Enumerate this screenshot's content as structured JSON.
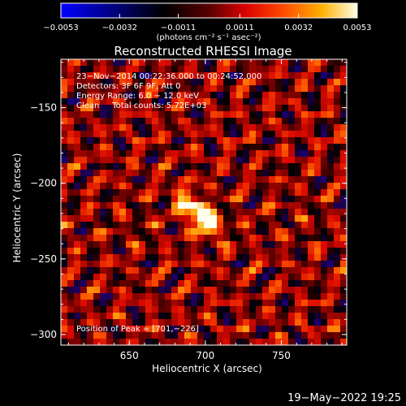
{
  "chart_data": {
    "type": "heatmap",
    "title": "Reconstructed RHESSI Image",
    "xlabel": "Heliocentric X (arcsec)",
    "ylabel": "Heliocentric Y (arcsec)",
    "xlim": [
      605,
      793
    ],
    "ylim": [
      -307,
      -118
    ],
    "x_ticks": [
      {
        "value": 650,
        "label": "650"
      },
      {
        "value": 700,
        "label": "700"
      },
      {
        "value": 750,
        "label": "750"
      }
    ],
    "y_ticks": [
      {
        "value": -150,
        "label": "−150"
      },
      {
        "value": -200,
        "label": "−200"
      },
      {
        "value": -250,
        "label": "−250"
      },
      {
        "value": -300,
        "label": "−300"
      }
    ],
    "colorbar": {
      "min": -0.0053,
      "max": 0.0053,
      "ticks": [
        {
          "value": -0.0053,
          "label": "−0.0053"
        },
        {
          "value": -0.0032,
          "label": "−0.0032"
        },
        {
          "value": -0.0011,
          "label": "−0.0011"
        },
        {
          "value": 0.0011,
          "label": "0.0011"
        },
        {
          "value": 0.0032,
          "label": "0.0032"
        },
        {
          "value": 0.0053,
          "label": "0.0053"
        }
      ],
      "unit_label": "(photons cm⁻² s⁻¹ asec⁻²)"
    },
    "peak": [
      701,
      -226
    ],
    "colors": {
      "background": "#000000",
      "colormap": [
        "#0000ff",
        "#000000",
        "#8b0000",
        "#ff0000",
        "#ff8c00",
        "#ffff00",
        "#ffffff"
      ]
    }
  },
  "info_lines": [
    "23−Nov−2014 00:22:36.000 to 00:24:52.000",
    "Detectors: 3F 6F 9F, Att 0",
    "Energy Range: 6.0 − 12.0 keV",
    "Clean     Total counts: 5.72E+03"
  ],
  "peak_label": "Position of Peak = [701,−226]",
  "footer_timestamp": "19−May−2022 19:25"
}
